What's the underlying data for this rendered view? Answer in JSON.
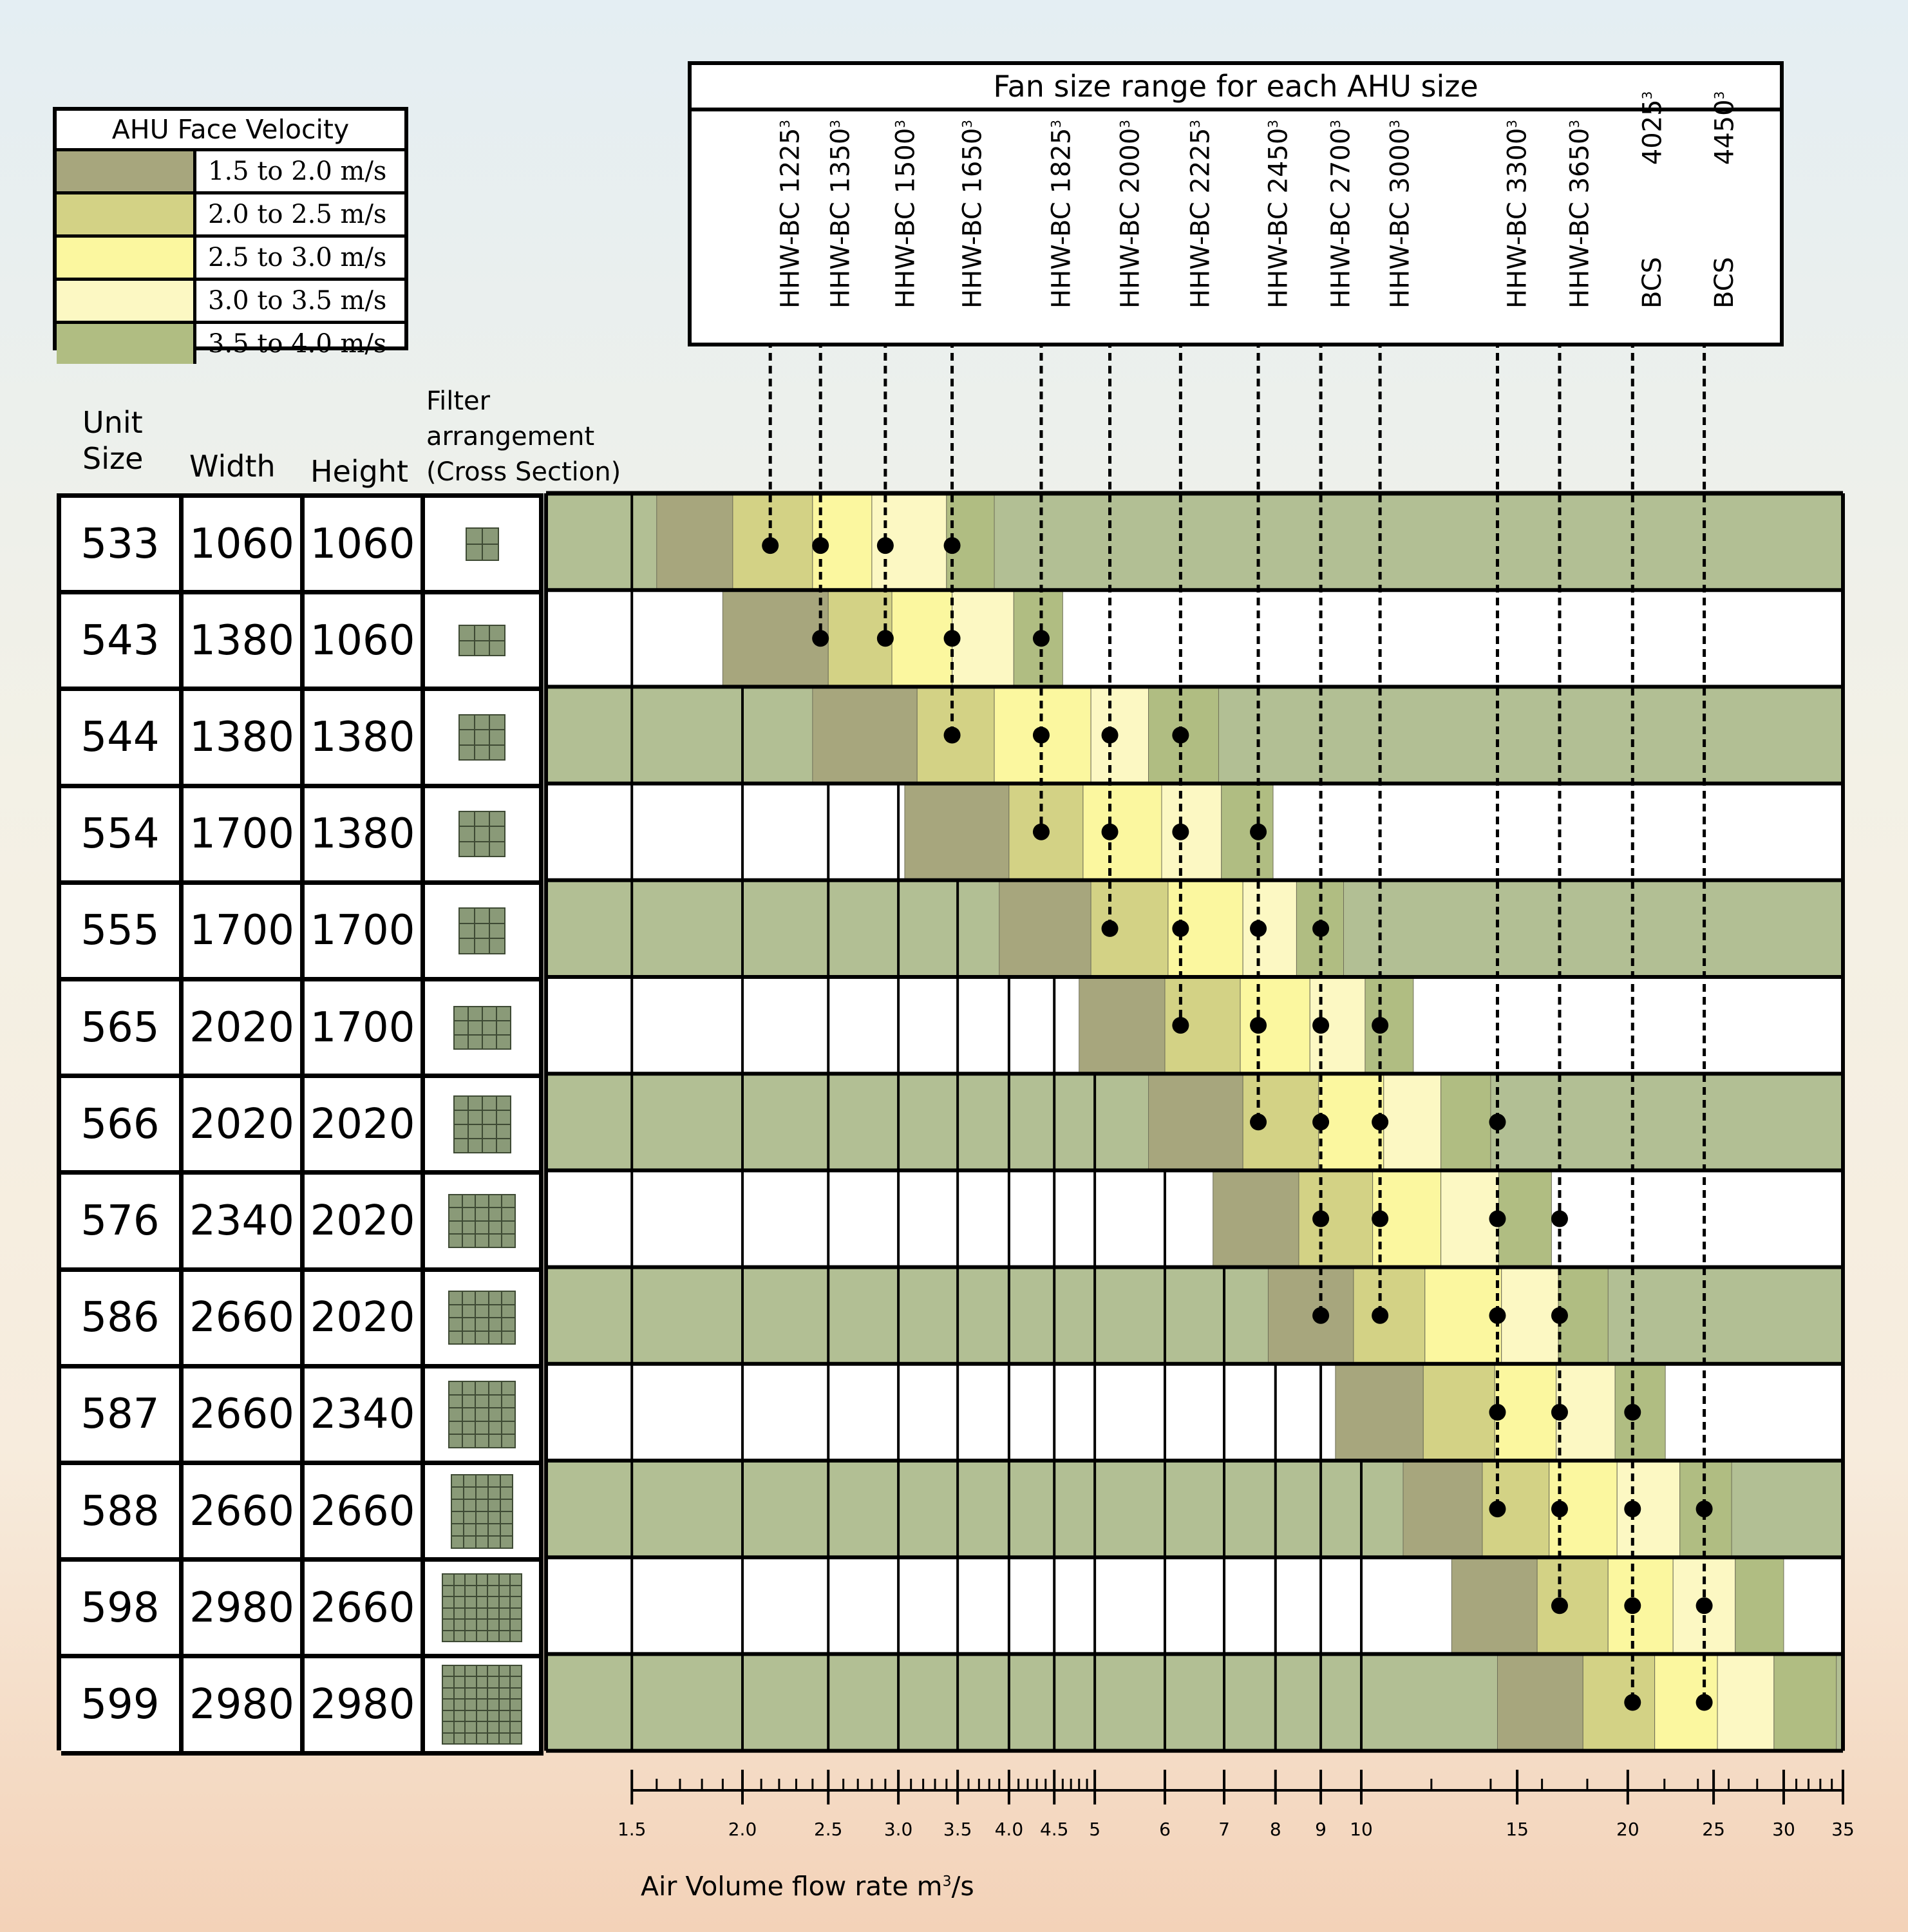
{
  "chart_data": {
    "type": "bar",
    "x_scale": "log",
    "xlim": [
      1.2,
      35
    ],
    "xlabel_main": "Air Volume flow rate m",
    "xlabel_sup": "3",
    "xlabel_tail": "/s",
    "x_ticks_major": [
      1.5,
      2.0,
      2.5,
      3.0,
      3.5,
      4.0,
      4.5,
      5,
      6,
      7,
      8,
      9,
      10,
      15,
      20,
      25,
      30,
      35
    ],
    "x_tick_labels": [
      "1.5",
      "2.0",
      "2.5",
      "3.0",
      "3.5",
      "4.0",
      "4.5",
      "5",
      "6",
      "7",
      "8",
      "9",
      "10",
      "15",
      "20",
      "25",
      "30",
      "35"
    ],
    "x_ticks_minor": [
      1.6,
      1.7,
      1.8,
      1.9,
      2.1,
      2.2,
      2.3,
      2.4,
      2.6,
      2.7,
      2.8,
      2.9,
      3.1,
      3.2,
      3.3,
      3.4,
      3.6,
      3.7,
      3.8,
      3.9,
      4.1,
      4.2,
      4.3,
      4.4,
      4.6,
      4.7,
      4.8,
      4.9,
      12,
      14,
      16,
      18,
      22,
      24,
      26,
      28,
      31,
      32,
      33,
      34
    ],
    "legend": {
      "title": "AHU Face Velocity",
      "items": [
        {
          "label": "1.5 to 2.0 m/s",
          "color": "#a7a67d"
        },
        {
          "label": "2.0 to 2.5 m/s",
          "color": "#d3d285"
        },
        {
          "label": "2.5 to 3.0 m/s",
          "color": "#fbf79f"
        },
        {
          "label": "3.0 to 3.5 m/s",
          "color": "#fcf8c3"
        },
        {
          "label": "3.5 to 4.0 m/s",
          "color": "#b0bd82"
        }
      ]
    },
    "fan_box_title": "Fan size range for each AHU size",
    "fans": [
      {
        "prefix": "HHW-BC ",
        "size": "1225",
        "sup": "3",
        "x": 2.15
      },
      {
        "prefix": "HHW-BC ",
        "size": "1350",
        "sup": "3",
        "x": 2.45
      },
      {
        "prefix": "HHW-BC ",
        "size": "1500",
        "sup": "3",
        "x": 2.9
      },
      {
        "prefix": "HHW-BC ",
        "size": "1650",
        "sup": "3",
        "x": 3.45
      },
      {
        "prefix": "HHW-BC ",
        "size": "1825",
        "sup": "3",
        "x": 4.35
      },
      {
        "prefix": "HHW-BC ",
        "size": "2000",
        "sup": "3",
        "x": 5.2
      },
      {
        "prefix": "HHW-BC ",
        "size": "2225",
        "sup": "3",
        "x": 6.25
      },
      {
        "prefix": "HHW-BC ",
        "size": "2450",
        "sup": "3",
        "x": 7.65
      },
      {
        "prefix": "HHW-BC ",
        "size": "2700",
        "sup": "3",
        "x": 9.0
      },
      {
        "prefix": "HHW-BC ",
        "size": "3000",
        "sup": "3",
        "x": 10.5
      },
      {
        "prefix": "HHW-BC ",
        "size": "3300",
        "sup": "3",
        "x": 14.25
      },
      {
        "prefix": "HHW-BC ",
        "size": "3650",
        "sup": "3",
        "x": 16.75
      },
      {
        "prefix": "BCS ",
        "size": "4025",
        "sup": "3",
        "x": 20.25
      },
      {
        "prefix": "BCS ",
        "size": "4450",
        "sup": "3",
        "x": 24.4
      }
    ],
    "headers": {
      "unit_line1": "Unit",
      "unit_line2": "Size",
      "width": "Width",
      "height": "Height",
      "filter_line1": "Filter",
      "filter_line2": "arrangement",
      "filter_line3": "(Cross Section)"
    },
    "units": [
      {
        "unit": "533",
        "width": "1060",
        "height": "1060",
        "filter": [
          2,
          2
        ],
        "bands": [
          1.6,
          1.95,
          2.4,
          2.8,
          3.4,
          3.85
        ],
        "fans": [
          0,
          1,
          2,
          3
        ]
      },
      {
        "unit": "543",
        "width": "1380",
        "height": "1060",
        "filter": [
          3,
          2
        ],
        "bands": [
          1.9,
          2.5,
          2.95,
          3.45,
          4.05,
          4.6
        ],
        "fans": [
          1,
          2,
          3,
          4
        ]
      },
      {
        "unit": "544",
        "width": "1380",
        "height": "1380",
        "filter": [
          3,
          3
        ],
        "bands": [
          2.4,
          3.15,
          3.85,
          4.95,
          5.75,
          6.9
        ],
        "fans": [
          3,
          4,
          5,
          6
        ]
      },
      {
        "unit": "554",
        "width": "1700",
        "height": "1380",
        "filter": [
          3,
          3
        ],
        "bands": [
          3.05,
          4.0,
          4.85,
          5.95,
          6.95,
          7.95
        ],
        "fans": [
          4,
          5,
          6,
          7
        ]
      },
      {
        "unit": "555",
        "width": "1700",
        "height": "1700",
        "filter": [
          3,
          3
        ],
        "bands": [
          3.9,
          4.95,
          6.05,
          7.35,
          8.45,
          9.55
        ],
        "fans": [
          5,
          6,
          7,
          8
        ]
      },
      {
        "unit": "565",
        "width": "2020",
        "height": "1700",
        "filter": [
          4,
          3
        ],
        "bands": [
          4.8,
          6.0,
          7.3,
          8.75,
          10.1,
          11.45
        ],
        "fans": [
          6,
          7,
          8,
          9
        ]
      },
      {
        "unit": "566",
        "width": "2020",
        "height": "2020",
        "filter": [
          4,
          4
        ],
        "bands": [
          5.75,
          7.35,
          8.95,
          10.6,
          12.3,
          14.0
        ],
        "fans": [
          7,
          8,
          9,
          10
        ]
      },
      {
        "unit": "576",
        "width": "2340",
        "height": "2020",
        "filter": [
          5,
          4
        ],
        "bands": [
          6.8,
          8.5,
          10.3,
          12.3,
          14.3,
          16.4
        ],
        "fans": [
          8,
          9,
          10,
          11
        ]
      },
      {
        "unit": "586",
        "width": "2660",
        "height": "2020",
        "filter": [
          5,
          4
        ],
        "bands": [
          7.85,
          9.8,
          11.8,
          14.4,
          16.7,
          19.0
        ],
        "fans": [
          8,
          9,
          10,
          11
        ]
      },
      {
        "unit": "587",
        "width": "2660",
        "height": "2340",
        "filter": [
          5,
          5
        ],
        "bands": [
          9.35,
          11.75,
          14.15,
          16.6,
          19.35,
          22.05
        ],
        "fans": [
          10,
          11,
          12
        ]
      },
      {
        "unit": "588",
        "width": "2660",
        "height": "2660",
        "filter": [
          5,
          6
        ],
        "bands": [
          11.15,
          13.7,
          16.3,
          19.45,
          22.9,
          26.2
        ],
        "fans": [
          10,
          11,
          12,
          13
        ]
      },
      {
        "unit": "598",
        "width": "2980",
        "height": "2660",
        "filter": [
          7,
          6
        ],
        "bands": [
          12.65,
          15.8,
          19.0,
          22.5,
          26.45,
          30.0
        ],
        "fans": [
          11,
          12,
          13
        ]
      },
      {
        "unit": "599",
        "width": "2980",
        "height": "2980",
        "filter": [
          7,
          7
        ],
        "bands": [
          14.25,
          17.8,
          21.45,
          25.25,
          29.25,
          34.4
        ],
        "fans": [
          12,
          13
        ]
      }
    ]
  }
}
